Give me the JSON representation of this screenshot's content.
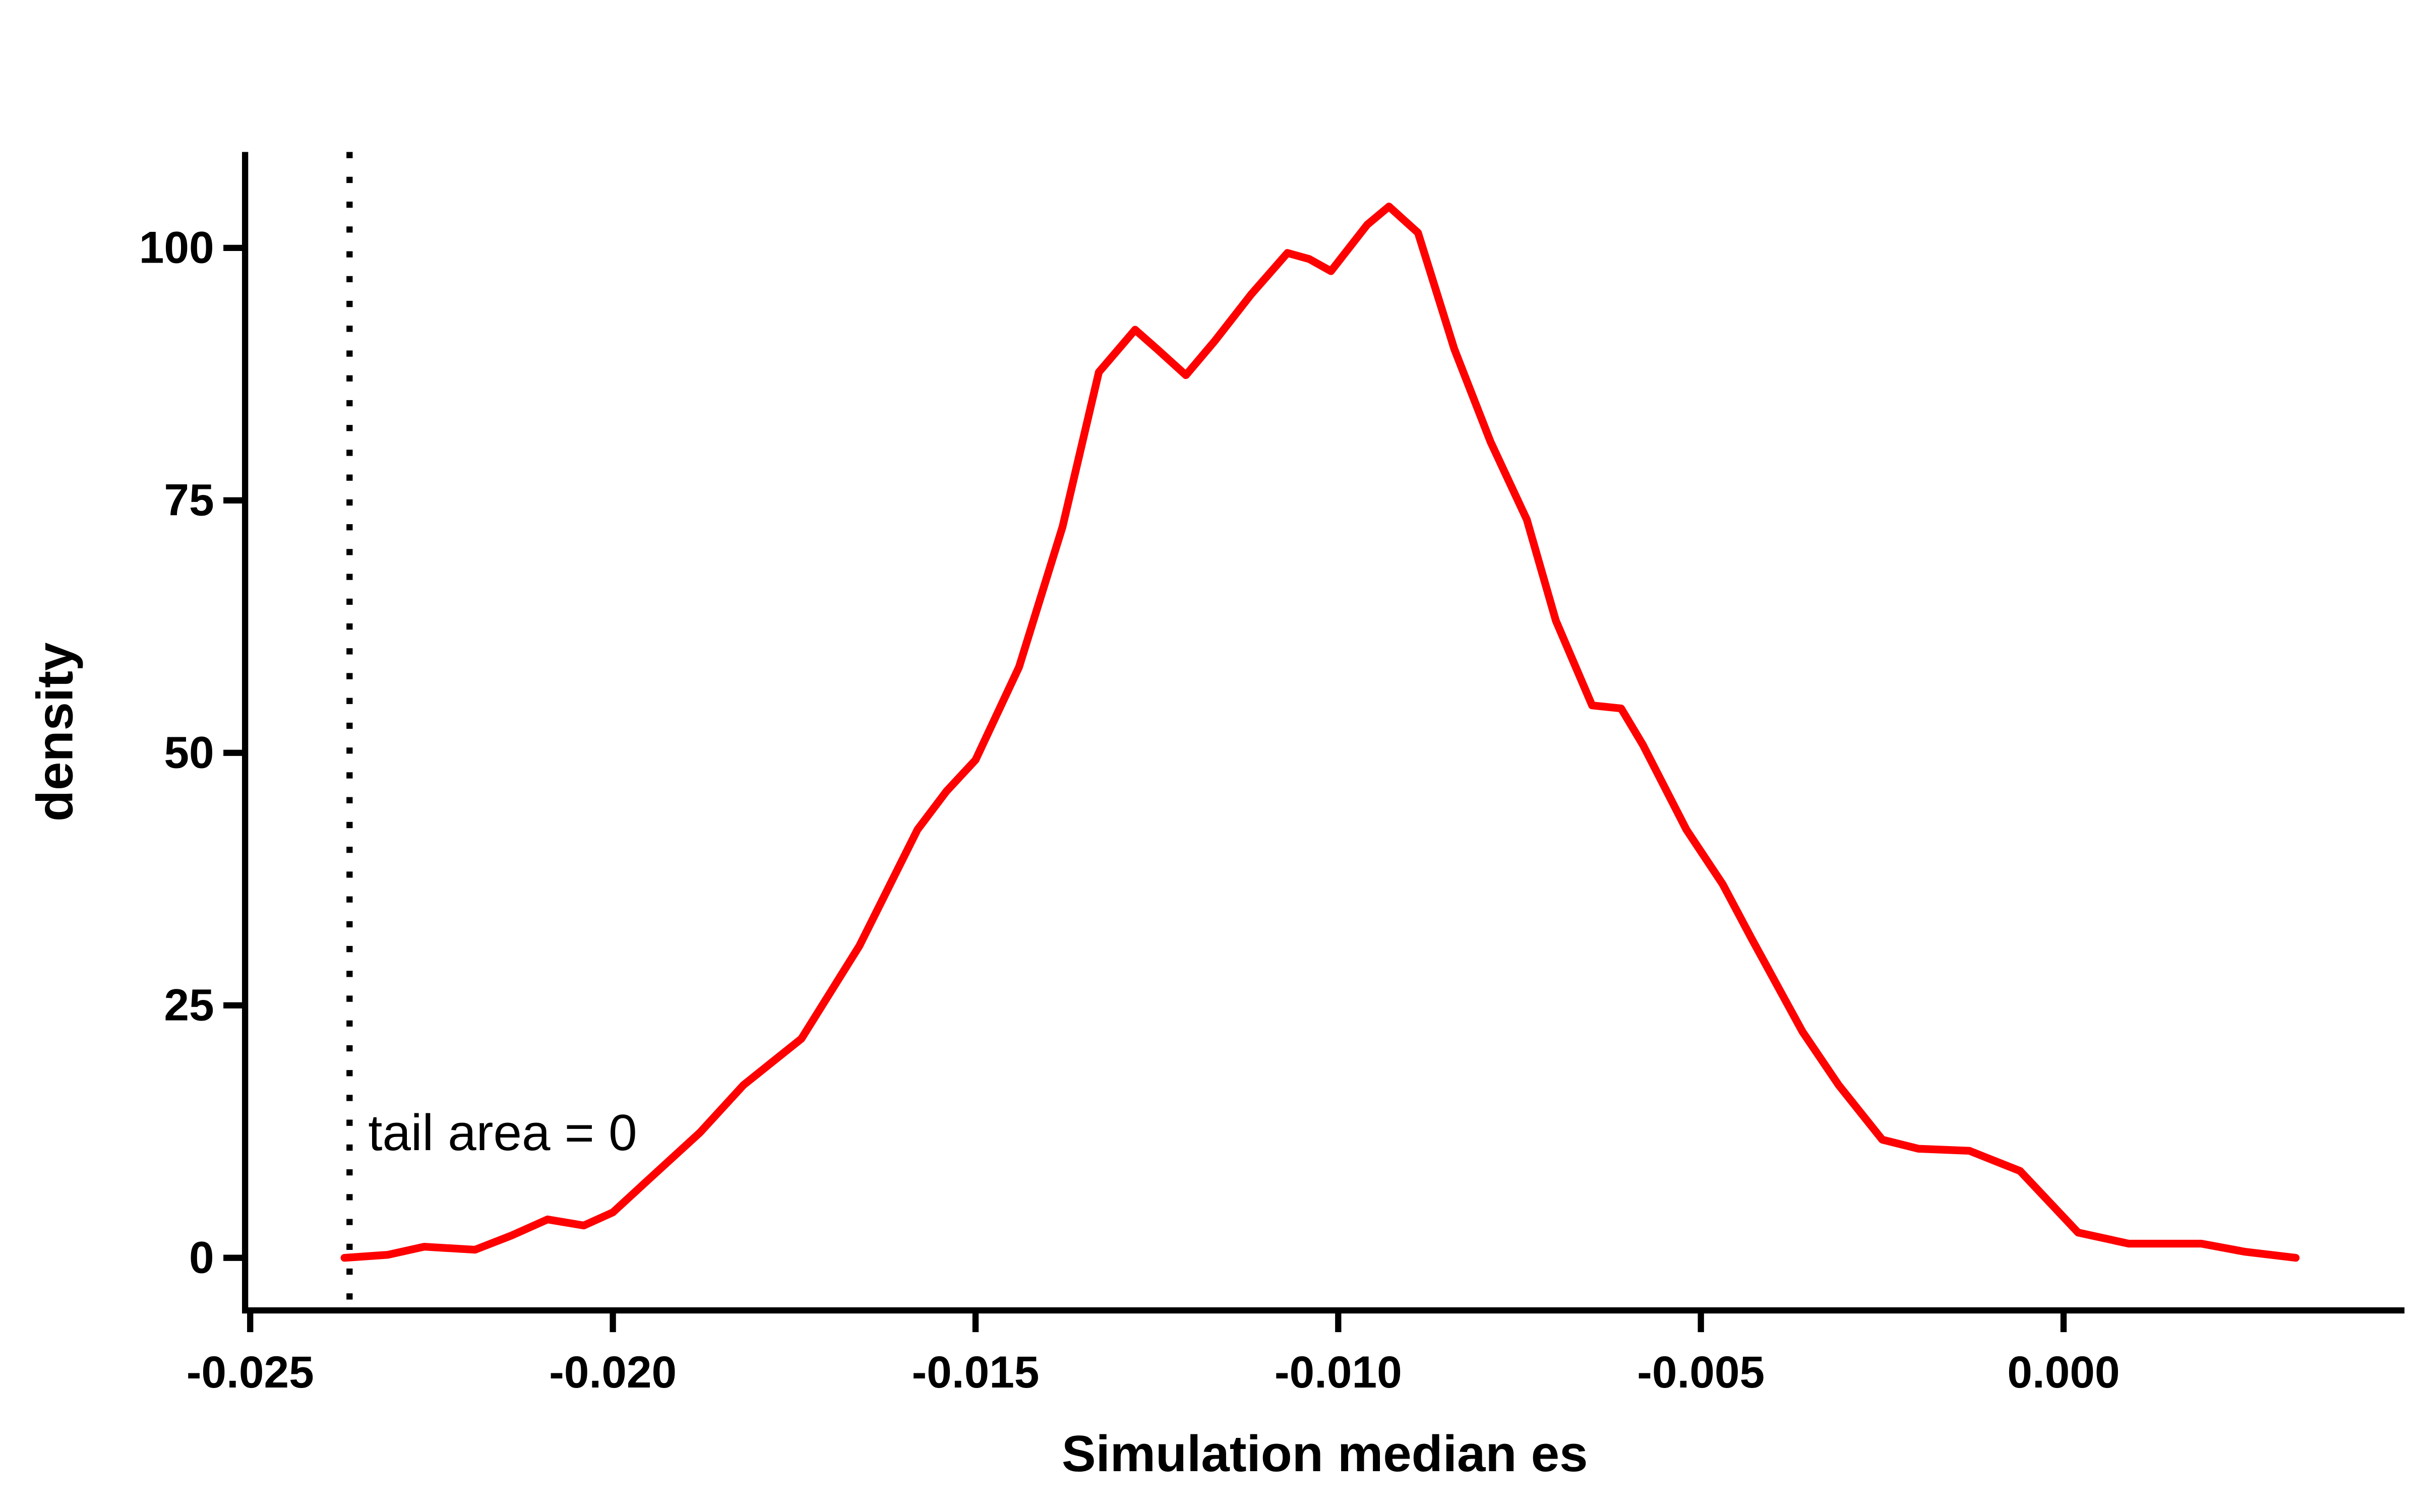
{
  "chart_data": {
    "type": "line",
    "xlabel": "Simulation median es",
    "ylabel": "density",
    "annotation": "tail area =  0",
    "reference_x": -0.02363,
    "xlim": [
      -0.02507,
      0.0047
    ],
    "ylim": [
      -4.9,
      109.5
    ],
    "xticks": [
      -0.025,
      {
        "value": -0.02,
        "label": "-0.020"
      },
      -0.015,
      {
        "value": -0.01,
        "label": "-0.010"
      },
      -0.005,
      {
        "value": 0,
        "label": "0.000"
      }
    ],
    "yticks": [
      0,
      25,
      50,
      75,
      100
    ],
    "series": [
      {
        "name": "density",
        "color": "#ff0000",
        "x": [
          -0.0237,
          -0.0231,
          -0.0226,
          -0.0219,
          -0.0214,
          -0.0209,
          -0.0204,
          -0.02,
          -0.0195,
          -0.0188,
          -0.0182,
          -0.0174,
          -0.0166,
          -0.0158,
          -0.0154,
          -0.015,
          -0.0144,
          -0.0138,
          -0.0133,
          -0.0128,
          -0.0125,
          -0.0121,
          -0.0117,
          -0.0112,
          -0.0107,
          -0.0104,
          -0.0101,
          -0.0096,
          -0.0093,
          -0.0089,
          -0.0084,
          -0.0079,
          -0.0074,
          -0.007,
          -0.0065,
          -0.0061,
          -0.0058,
          -0.0052,
          -0.0047,
          -0.0043,
          -0.0036,
          -0.0031,
          -0.0025,
          -0.002,
          -0.0013,
          -0.0006,
          0.0002,
          0.0009,
          0.0019,
          0.0025,
          0.0032
        ],
        "values": [
          0,
          0.3,
          1.1,
          0.8,
          2.2,
          3.8,
          3.2,
          4.5,
          7.8,
          12.4,
          17.1,
          21.7,
          30.9,
          42.4,
          46.2,
          49.3,
          58.5,
          72.4,
          87.7,
          91.9,
          90.0,
          87.4,
          90.8,
          95.4,
          99.5,
          98.9,
          97.7,
          102.3,
          104.1,
          101.5,
          90.0,
          80.8,
          73.1,
          63.1,
          54.7,
          54.4,
          50.8,
          42.4,
          37.0,
          31.6,
          22.4,
          17.1,
          11.7,
          10.8,
          10.6,
          8.6,
          2.5,
          1.4,
          1.4,
          0.6,
          0
        ]
      }
    ]
  }
}
